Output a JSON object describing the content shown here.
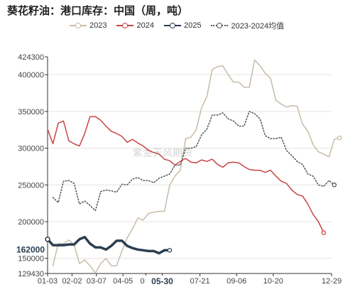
{
  "title": "葵花籽油：港口库存：中国（周，吨）",
  "watermark": "紫金天风期货",
  "cursor": {
    "x_label": "05-30",
    "y_label": "162000"
  },
  "chart_data": {
    "type": "line",
    "title": "葵花籽油：港口库存：中国（周，吨）",
    "ylim": [
      129430,
      424300
    ],
    "y_ticks": [
      {
        "v": 424300,
        "label": "424300"
      },
      {
        "v": 400000,
        "label": "400000"
      },
      {
        "v": 350000,
        "label": "350000"
      },
      {
        "v": 300000,
        "label": "300000"
      },
      {
        "v": 250000,
        "label": "250000"
      },
      {
        "v": 200000,
        "label": "200000"
      },
      {
        "v": 150000,
        "label": "150000"
      },
      {
        "v": 129430,
        "label": "129430"
      }
    ],
    "grid_y": [
      400000,
      350000,
      300000,
      250000,
      200000,
      150000
    ],
    "x_ticks": [
      "01-03",
      "02-02",
      "03-07",
      "04-05",
      "05-",
      "05-30",
      "07-21",
      "09-06",
      "10-20",
      "12-29"
    ],
    "x_tick_pos": [
      0,
      4.6,
      9.2,
      14.2,
      18.5,
      21.6,
      28.7,
      35.6,
      42.5,
      53.5
    ],
    "x_range": [
      0,
      53.5
    ],
    "cursor_x": 21.6,
    "grid": "horizontal",
    "legend_position": "top",
    "series": [
      {
        "name": "2023",
        "color": "#c9bba9",
        "style": "solid",
        "width": 1.5,
        "y": [
          null,
          140000,
          170000,
          170000,
          175000,
          168000,
          143000,
          148000,
          140000,
          130000,
          143000,
          150000,
          140000,
          140000,
          160000,
          178000,
          190000,
          205000,
          202000,
          211000,
          213000,
          214000,
          214000,
          250000,
          262000,
          270000,
          313000,
          315000,
          325000,
          355000,
          370000,
          407000,
          411000,
          412000,
          400000,
          390000,
          390000,
          383000,
          383000,
          420000,
          412000,
          402000,
          395000,
          365000,
          360000,
          356000,
          358000,
          357000,
          333000,
          323000,
          305000,
          295000,
          292000,
          288000,
          312000,
          314000
        ]
      },
      {
        "name": "2024",
        "color": "#c94545",
        "style": "solid",
        "width": 1.5,
        "y": [
          326000,
          306000,
          334000,
          337000,
          310000,
          306000,
          303000,
          320000,
          343000,
          343000,
          338000,
          330000,
          323000,
          320000,
          316000,
          308000,
          312000,
          307000,
          303000,
          297000,
          294000,
          292000,
          285000,
          283000,
          277000,
          282000,
          286000,
          281000,
          280000,
          284000,
          282000,
          285000,
          278000,
          274000,
          280000,
          281000,
          280000,
          275000,
          271000,
          270000,
          270000,
          267000,
          270000,
          262000,
          255000,
          252000,
          243000,
          237000,
          235000,
          224000,
          210000,
          200000,
          185000
        ]
      },
      {
        "name": "2025",
        "color": "#2c3e50",
        "style": "solid",
        "width": 3.5,
        "y": [
          176000,
          168000,
          168000,
          168000,
          169000,
          169000,
          176000,
          179000,
          170000,
          165000,
          165000,
          162000,
          167000,
          174000,
          174000,
          167000,
          164000,
          162000,
          161000,
          160000,
          160000,
          157000,
          161000,
          161000
        ]
      },
      {
        "name": "2023-2024均值",
        "color": "#555555",
        "style": "dotted",
        "width": 1.5,
        "y": [
          null,
          233000,
          226000,
          255000,
          256000,
          252000,
          224000,
          228000,
          222000,
          215000,
          241000,
          243000,
          242000,
          240000,
          251000,
          250000,
          258000,
          260000,
          256000,
          256000,
          253000,
          259000,
          262000,
          265000,
          277000,
          277000,
          300000,
          300000,
          302000,
          318000,
          326000,
          345000,
          345000,
          348000,
          340000,
          337000,
          330000,
          330000,
          350000,
          347000,
          340000,
          317000,
          313000,
          313000,
          315000,
          297000,
          290000,
          282000,
          278000,
          265000,
          262000,
          250000,
          248000,
          256000,
          250000
        ]
      }
    ]
  }
}
